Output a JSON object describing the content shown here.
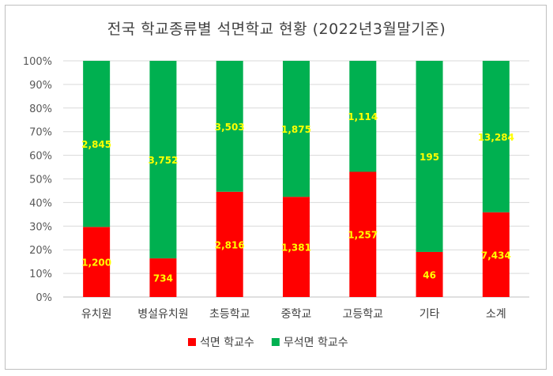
{
  "chart_data": {
    "type": "bar",
    "stacked": "percent",
    "title": "전국 학교종류별 석면학교 현황 (2022년3월말기준)",
    "categories": [
      "유치원",
      "병설유치원",
      "초등학교",
      "중학교",
      "고등학교",
      "기타",
      "소계"
    ],
    "series": [
      {
        "name": "석면 학교수",
        "color": "#ff0000",
        "values": [
          1200,
          734,
          2816,
          1381,
          1257,
          46,
          7434
        ]
      },
      {
        "name": "무석면 학교수",
        "color": "#00b050",
        "values": [
          2845,
          3752,
          3503,
          1875,
          1114,
          195,
          13284
        ]
      }
    ],
    "data_labels": {
      "석면 학교수": [
        "1,200",
        "734",
        "2,816",
        "1,381",
        "1,257",
        "46",
        "7,434"
      ],
      "무석면 학교수": [
        "2,845",
        "3,752",
        "3,503",
        "1,875",
        "1,114",
        "195",
        "13,284"
      ]
    },
    "y_ticks": [
      "0%",
      "10%",
      "20%",
      "30%",
      "40%",
      "50%",
      "60%",
      "70%",
      "80%",
      "90%",
      "100%"
    ],
    "ylim": [
      0,
      100
    ],
    "grid": true,
    "legend": "bottom",
    "label_color": "#ffff00"
  }
}
